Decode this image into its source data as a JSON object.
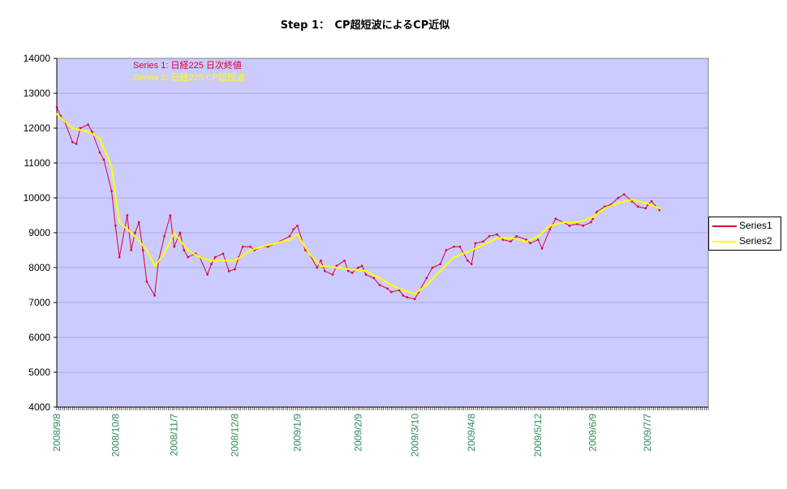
{
  "title": "Step 1：　CP超短波によるCP近似",
  "chart_data": {
    "type": "line",
    "ylim": [
      4000,
      14000
    ],
    "yticks": [
      4000,
      5000,
      6000,
      7000,
      8000,
      9000,
      10000,
      11000,
      12000,
      13000,
      14000
    ],
    "xlim": [
      "2008-09-08",
      "2009-08-07"
    ],
    "xtick_labels": [
      "2008/9/8",
      "2008/10/8",
      "2008/11/7",
      "2008/12/8",
      "2009/1/9",
      "2009/2/9",
      "2009/3/10",
      "2009/4/8",
      "2009/5/12",
      "2009/6/9",
      "2009/7/7"
    ],
    "xtick_dates": [
      "2008-09-08",
      "2008-10-08",
      "2008-11-07",
      "2008-12-08",
      "2009-01-09",
      "2009-02-09",
      "2009-03-10",
      "2009-04-08",
      "2009-05-12",
      "2009-06-09",
      "2009-07-07"
    ],
    "plot_background": "#cbcbff",
    "grid": true,
    "legend_position": "right",
    "annotations": [
      {
        "text": "Series 1:  日経225  日次終値",
        "color": "#dd0033"
      },
      {
        "text": "Series 2:  日経225  CP超短波",
        "color": "#ffff00"
      }
    ],
    "series": [
      {
        "name": "Series1",
        "color": "#dd0033",
        "x": [
          "2008-09-08",
          "2008-09-10",
          "2008-09-12",
          "2008-09-16",
          "2008-09-18",
          "2008-09-20",
          "2008-09-24",
          "2008-09-26",
          "2008-09-30",
          "2008-10-02",
          "2008-10-06",
          "2008-10-08",
          "2008-10-10",
          "2008-10-14",
          "2008-10-16",
          "2008-10-18",
          "2008-10-20",
          "2008-10-22",
          "2008-10-24",
          "2008-10-28",
          "2008-10-30",
          "2008-11-02",
          "2008-11-05",
          "2008-11-07",
          "2008-11-10",
          "2008-11-12",
          "2008-11-14",
          "2008-11-18",
          "2008-11-20",
          "2008-11-24",
          "2008-11-26",
          "2008-11-28",
          "2008-12-02",
          "2008-12-05",
          "2008-12-08",
          "2008-12-10",
          "2008-12-12",
          "2008-12-16",
          "2008-12-18",
          "2008-12-22",
          "2008-12-25",
          "2008-12-29",
          "2009-01-05",
          "2009-01-07",
          "2009-01-09",
          "2009-01-13",
          "2009-01-15",
          "2009-01-19",
          "2009-01-21",
          "2009-01-23",
          "2009-01-27",
          "2009-01-29",
          "2009-02-02",
          "2009-02-04",
          "2009-02-06",
          "2009-02-09",
          "2009-02-11",
          "2009-02-13",
          "2009-02-17",
          "2009-02-20",
          "2009-02-24",
          "2009-02-26",
          "2009-03-02",
          "2009-03-04",
          "2009-03-06",
          "2009-03-10",
          "2009-03-12",
          "2009-03-16",
          "2009-03-19",
          "2009-03-23",
          "2009-03-26",
          "2009-03-30",
          "2009-04-02",
          "2009-04-06",
          "2009-04-08",
          "2009-04-10",
          "2009-04-14",
          "2009-04-17",
          "2009-04-21",
          "2009-04-24",
          "2009-04-28",
          "2009-05-01",
          "2009-05-06",
          "2009-05-08",
          "2009-05-12",
          "2009-05-14",
          "2009-05-18",
          "2009-05-21",
          "2009-05-25",
          "2009-05-28",
          "2009-06-01",
          "2009-06-04",
          "2009-06-08",
          "2009-06-09",
          "2009-06-11",
          "2009-06-15",
          "2009-06-18",
          "2009-06-22",
          "2009-06-25",
          "2009-06-29",
          "2009-07-02",
          "2009-07-06",
          "2009-07-07",
          "2009-07-09",
          "2009-07-13"
        ],
        "values": [
          12600,
          12350,
          12200,
          11600,
          11550,
          12000,
          12100,
          11900,
          11300,
          11100,
          10200,
          9200,
          8300,
          9500,
          8500,
          9000,
          9300,
          8500,
          7600,
          7200,
          8200,
          8900,
          9500,
          8600,
          9000,
          8500,
          8300,
          8400,
          8300,
          7800,
          8100,
          8300,
          8400,
          7900,
          7950,
          8300,
          8600,
          8600,
          8500,
          8600,
          8600,
          8700,
          8900,
          9100,
          9200,
          8500,
          8400,
          8000,
          8200,
          7900,
          7800,
          8050,
          8200,
          7900,
          7850,
          8000,
          8050,
          7800,
          7700,
          7500,
          7400,
          7300,
          7350,
          7200,
          7150,
          7100,
          7300,
          7700,
          8000,
          8100,
          8500,
          8600,
          8600,
          8200,
          8100,
          8700,
          8750,
          8900,
          8950,
          8800,
          8750,
          8900,
          8800,
          8700,
          8800,
          8550,
          9100,
          9400,
          9300,
          9200,
          9250,
          9200,
          9300,
          9400,
          9600,
          9750,
          9800,
          10000,
          10100,
          9900,
          9750,
          9700,
          9800,
          9900,
          9650
        ]
      },
      {
        "name": "Series2",
        "color": "#ffff00",
        "x": [
          "2008-09-08",
          "2008-09-16",
          "2008-09-24",
          "2008-09-30",
          "2008-10-06",
          "2008-10-10",
          "2008-10-18",
          "2008-10-24",
          "2008-10-28",
          "2008-11-02",
          "2008-11-07",
          "2008-11-14",
          "2008-11-20",
          "2008-11-26",
          "2008-12-02",
          "2008-12-08",
          "2008-12-16",
          "2008-12-22",
          "2008-12-29",
          "2009-01-05",
          "2009-01-09",
          "2009-01-15",
          "2009-01-21",
          "2009-01-29",
          "2009-02-06",
          "2009-02-13",
          "2009-02-20",
          "2009-02-26",
          "2009-03-04",
          "2009-03-10",
          "2009-03-16",
          "2009-03-23",
          "2009-03-30",
          "2009-04-06",
          "2009-04-14",
          "2009-04-21",
          "2009-04-28",
          "2009-05-06",
          "2009-05-12",
          "2009-05-18",
          "2009-05-25",
          "2009-06-01",
          "2009-06-09",
          "2009-06-15",
          "2009-06-22",
          "2009-06-29",
          "2009-07-06",
          "2009-07-13"
        ],
        "values": [
          12400,
          12000,
          11900,
          11700,
          10900,
          9300,
          8900,
          8500,
          8050,
          8400,
          9000,
          8500,
          8300,
          8200,
          8200,
          8200,
          8500,
          8600,
          8700,
          8800,
          8950,
          8400,
          8050,
          8000,
          7950,
          7900,
          7700,
          7500,
          7350,
          7250,
          7500,
          7900,
          8300,
          8450,
          8650,
          8850,
          8850,
          8750,
          8900,
          9200,
          9300,
          9300,
          9450,
          9700,
          9850,
          9950,
          9850,
          9700
        ]
      }
    ]
  }
}
